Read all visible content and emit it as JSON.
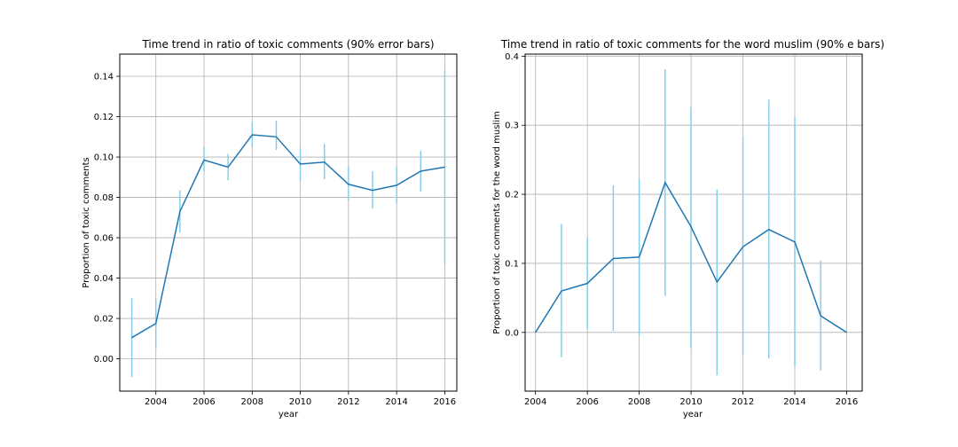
{
  "chart_data": [
    {
      "type": "line",
      "title": "Time trend in ratio of toxic comments (90% error bars)",
      "xlabel": "year",
      "ylabel": "Proportion of toxic comments",
      "xlim": [
        2002.5,
        2016.5
      ],
      "ylim": [
        -0.016,
        0.151
      ],
      "xticks": [
        2004,
        2006,
        2008,
        2010,
        2012,
        2014,
        2016
      ],
      "xtick_labels": [
        "2004",
        "2006",
        "2008",
        "2010",
        "2012",
        "2014",
        "2016"
      ],
      "yticks": [
        0.0,
        0.02,
        0.04,
        0.06,
        0.08,
        0.1,
        0.12,
        0.14
      ],
      "ytick_labels": [
        "0.00",
        "0.02",
        "0.04",
        "0.06",
        "0.08",
        "0.10",
        "0.12",
        "0.14"
      ],
      "grid": true,
      "line_color": "#1f77b4",
      "errorbar_color": "#87ceeb",
      "x": [
        2003,
        2004,
        2005,
        2006,
        2007,
        2008,
        2009,
        2010,
        2011,
        2012,
        2013,
        2014,
        2015,
        2016
      ],
      "y": [
        0.0105,
        0.0175,
        0.073,
        0.0985,
        0.095,
        0.111,
        0.11,
        0.0965,
        0.0975,
        0.0865,
        0.0835,
        0.086,
        0.093,
        0.095
      ],
      "err_low": [
        -0.009,
        0.005,
        0.0625,
        0.093,
        0.0885,
        0.105,
        0.1035,
        0.088,
        0.089,
        0.0785,
        0.0745,
        0.077,
        0.083,
        0.047
      ],
      "err_high": [
        0.03,
        0.03,
        0.0835,
        0.105,
        0.1015,
        0.1175,
        0.118,
        0.1045,
        0.1065,
        0.0955,
        0.093,
        0.095,
        0.103,
        0.143
      ]
    },
    {
      "type": "line",
      "title": "Time trend in ratio of toxic comments for the word muslim (90% e bars)",
      "xlabel": "year",
      "ylabel": "Proportion of toxic comments for the word muslim",
      "xlim": [
        2003.6,
        2016.6
      ],
      "ylim": [
        -0.085,
        0.403
      ],
      "xticks": [
        2004,
        2006,
        2008,
        2010,
        2012,
        2014,
        2016
      ],
      "xtick_labels": [
        "2004",
        "2006",
        "2008",
        "2010",
        "2012",
        "2014",
        "2016"
      ],
      "yticks": [
        0.0,
        0.1,
        0.2,
        0.3,
        0.4
      ],
      "ytick_labels": [
        "0.0",
        "0.1",
        "0.2",
        "0.3",
        "0.4"
      ],
      "grid": true,
      "line_color": "#1f77b4",
      "errorbar_color": "#87ceeb",
      "x": [
        2004,
        2005,
        2006,
        2007,
        2008,
        2009,
        2010,
        2011,
        2012,
        2013,
        2014,
        2015,
        2016
      ],
      "y": [
        0.0,
        0.06,
        0.071,
        0.107,
        0.109,
        0.217,
        0.153,
        0.073,
        0.124,
        0.149,
        0.131,
        0.024,
        0.0
      ],
      "err_low": [
        0.0,
        -0.036,
        0.005,
        0.002,
        -0.004,
        0.053,
        -0.023,
        -0.062,
        -0.032,
        -0.038,
        -0.05,
        -0.055,
        0.0
      ],
      "err_high": [
        0.0,
        0.157,
        0.137,
        0.213,
        0.222,
        0.381,
        0.326,
        0.207,
        0.283,
        0.337,
        0.312,
        0.104,
        0.0
      ]
    }
  ]
}
